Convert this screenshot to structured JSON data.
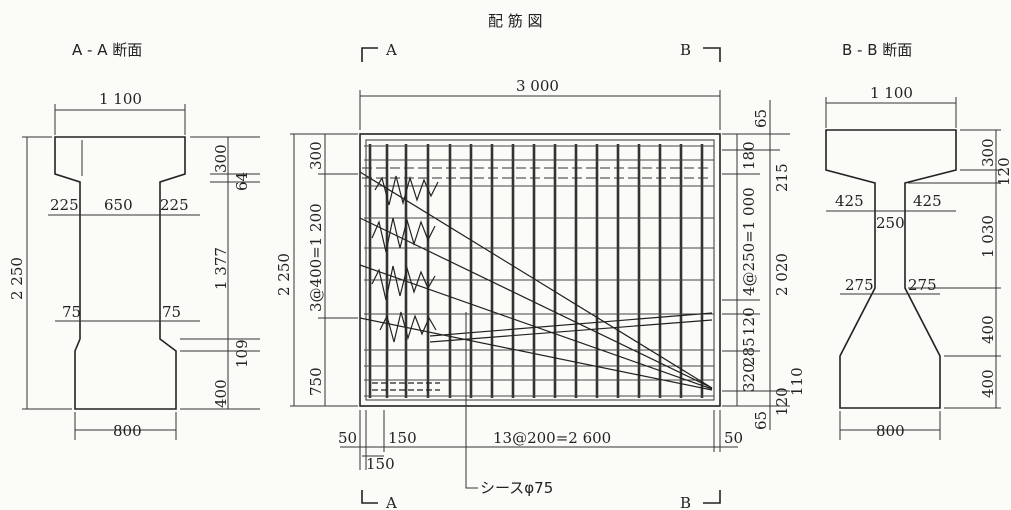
{
  "title": "配 筋 図",
  "section_a": {
    "title": "A - A 断面",
    "top_width": "1 100",
    "total_height": "2 250",
    "flange_height": "300",
    "fillet": "64",
    "left_ledge": "225",
    "web_width": "650",
    "right_ledge": "225",
    "web_height": "1 377",
    "left_ledge_lower": "75",
    "right_ledge_lower": "75",
    "haunch": "109",
    "bottom_height": "400",
    "bottom_width": "800"
  },
  "section_b": {
    "title": "B - B 断面",
    "top_width": "1 100",
    "flange_height": "300",
    "fillet": "120",
    "left_ledge": "425",
    "right_ledge": "425",
    "web_width": "250",
    "web_height": "1 030",
    "left_ledge_lower": "275",
    "right_ledge_lower": "275",
    "haunch_height": "400",
    "bottom_height": "400",
    "bottom_width": "800"
  },
  "elevation": {
    "label_a_top": "A",
    "label_b_top": "B",
    "label_a_bottom": "A",
    "label_b_bottom": "B",
    "length": "3 000",
    "height": "2 250",
    "left_top": "300",
    "left_middle": "3@400=1 200",
    "left_bottom": "750",
    "right_outer_top": "65",
    "right_outer_middle": "2 020",
    "right_outer_bottom": "65",
    "right_top": "180",
    "right_second": "215",
    "right_middle": "4@250=1 000",
    "right_120_a": "120",
    "right_285": "285",
    "right_320": "320",
    "right_120_b": "120",
    "right_110": "110",
    "bottom_left_end": "50",
    "bottom_150_a": "150",
    "bottom_spacing": "13@200=2 600",
    "bottom_right_end": "50",
    "bottom_150_b": "150",
    "sheath": "シースφ75"
  }
}
